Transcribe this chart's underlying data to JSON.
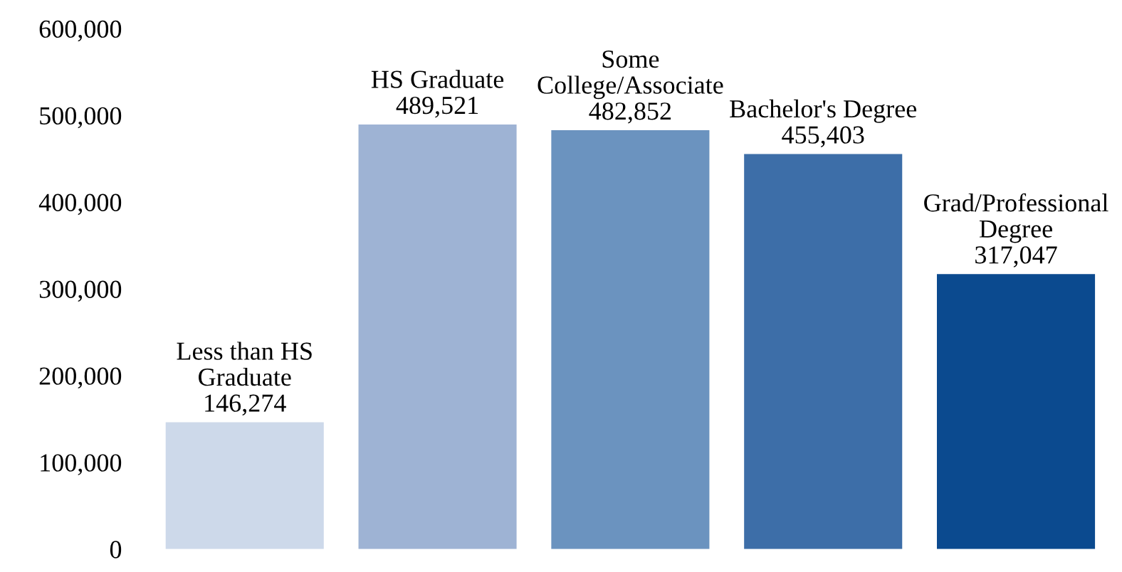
{
  "chart_data": {
    "type": "bar",
    "categories": [
      "Less than HS\nGraduate",
      "HS Graduate",
      "Some\nCollege/Associate",
      "Bachelor's Degree",
      "Grad/Professional\nDegree"
    ],
    "values": [
      146274,
      489521,
      482852,
      455403,
      317047
    ],
    "colors": [
      "#cdd9ea",
      "#9eb3d4",
      "#6b93bf",
      "#3d6ea8",
      "#0b4a8f"
    ],
    "ylim": [
      0,
      600000
    ],
    "yticks": [
      {
        "value": 0,
        "label": "0"
      },
      {
        "value": 100000,
        "label": "100,000"
      },
      {
        "value": 200000,
        "label": "200,000"
      },
      {
        "value": 300000,
        "label": "300,000"
      },
      {
        "value": 400000,
        "label": "400,000"
      },
      {
        "value": 500000,
        "label": "500,000"
      },
      {
        "value": 600000,
        "label": "600,000"
      }
    ],
    "value_labels": [
      "146,274",
      "489,521",
      "482,852",
      "455,403",
      "317,047"
    ],
    "tick_labels": "y",
    "grid": false
  }
}
